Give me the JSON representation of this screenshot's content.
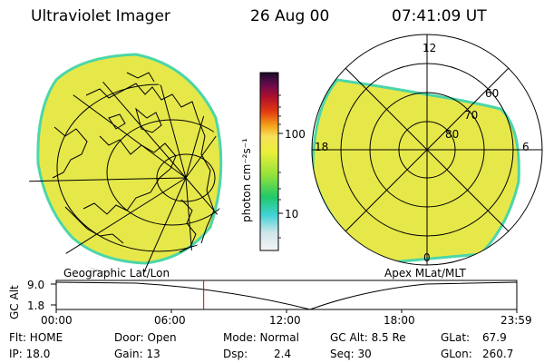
{
  "header": {
    "instrument": "Ultraviolet Imager",
    "date": "26 Aug 00",
    "time": "07:41:09 UT"
  },
  "colorbar": {
    "unit_label": "photon cm⁻²s⁻¹",
    "tick_labels": [
      "100",
      "10"
    ]
  },
  "polar_plot": {
    "mlt_labels": [
      "12",
      "18",
      "6",
      "0"
    ],
    "lat_labels": [
      "60",
      "70",
      "80"
    ]
  },
  "geo_label": "Geographic Lat/Lon",
  "apex_label": "Apex MLat/MLT",
  "altitude_plot": {
    "axis_label": "GC Alt",
    "y_ticks": [
      "9.0",
      "1.8"
    ],
    "x_ticks": [
      "00:00",
      "06:00",
      "12:00",
      "18:00",
      "23:59"
    ],
    "current_time_fraction": 0.3202
  },
  "status": {
    "flt": "Flt: HOME",
    "ip": "IP: 18.0",
    "door": "Door: Open",
    "gain": "Gain: 13",
    "mode": "Mode: Normal",
    "dsp": "Dsp:",
    "dsp_value": "2.4",
    "gc_alt": "GC Alt: 8.5 Re",
    "seq": "Seq: 30",
    "glat": "GLat:",
    "glat_value": "67.9",
    "glon": "GLon:",
    "glon_value": "260.7"
  },
  "colors": {
    "fill": "#e6e84a",
    "edge": "#4cd6a8"
  }
}
